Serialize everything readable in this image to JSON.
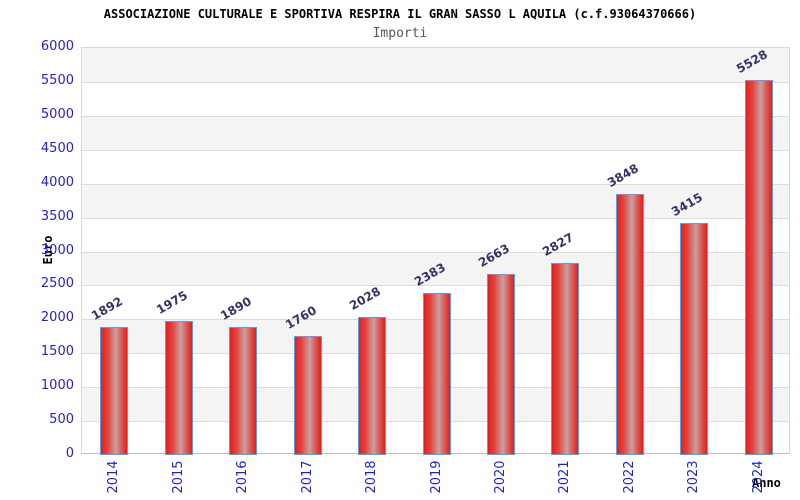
{
  "chart_data": {
    "type": "bar",
    "title": "ASSOCIAZIONE CULTURALE E SPORTIVA RESPIRA IL GRAN SASSO L AQUILA (c.f.93064370666)",
    "subtitle": "Importi",
    "xlabel": "Anno",
    "ylabel": "Euro",
    "categories": [
      "2014",
      "2015",
      "2016",
      "2017",
      "2018",
      "2019",
      "2020",
      "2021",
      "2022",
      "2023",
      "2024"
    ],
    "values": [
      1892,
      1975,
      1890,
      1760,
      2028,
      2383,
      2663,
      2827,
      3848,
      3415,
      5528
    ],
    "ylim": [
      0,
      6000
    ],
    "ytick_step": 500,
    "grid": true,
    "legend": "none",
    "colors": {
      "bar_fill": "#e2201c",
      "bar_highlight": "#c7a0a0",
      "bar_border": "#5b9de8",
      "tick_label": "#2222cc",
      "value_label": "#333366",
      "stripe": "#f4f4f4",
      "gridline": "#dcdcdc",
      "title": "#000000",
      "subtitle": "#595959"
    }
  }
}
